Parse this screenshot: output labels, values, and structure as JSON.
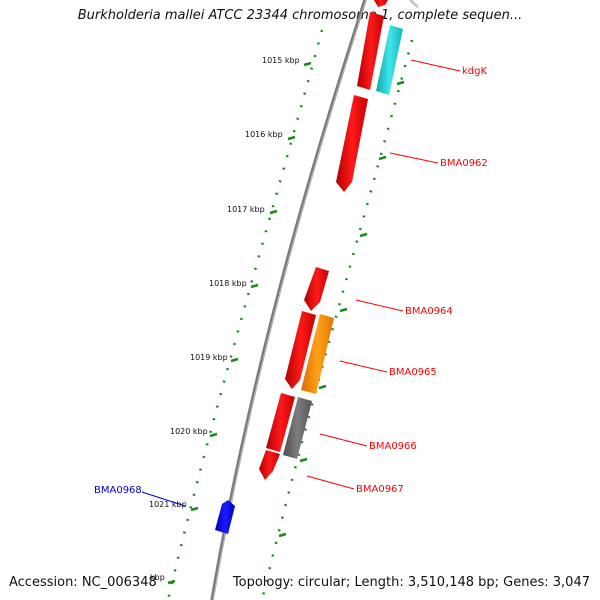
{
  "title": "Burkholderia mallei ATCC 23344 chromosome 1, complete sequen...",
  "footer": {
    "accession": "Accession: NC_006348",
    "info": "Topology: circular; Length: 3,510,148 bp; Genes: 3,047"
  },
  "ticks": [
    "1015 kbp",
    "1016 kbp",
    "1017 kbp",
    "1018 kbp",
    "1019 kbp",
    "1020 kbp",
    "1021 kbp",
    "kbp"
  ],
  "genes": [
    {
      "label": "kdgK",
      "color": "#ff0000"
    },
    {
      "label": "BMA0962",
      "color": "#ff0000"
    },
    {
      "label": "BMA0964",
      "color": "#ff0000"
    },
    {
      "label": "BMA0965",
      "color": "#ff0000"
    },
    {
      "label": "BMA0966",
      "color": "#ff0000"
    },
    {
      "label": "BMA0967",
      "color": "#ff0000"
    },
    {
      "label": "BMA0968",
      "color": "#0000cc"
    }
  ],
  "colors": {
    "backbone": "#808080",
    "tick_green": "#1a8a1a",
    "red_feature": "#ff0000",
    "cyan_feature": "#22d3d6",
    "orange_feature": "#ff8c00",
    "gray_feature": "#6b6b6b",
    "blue_feature": "#0000ff"
  }
}
